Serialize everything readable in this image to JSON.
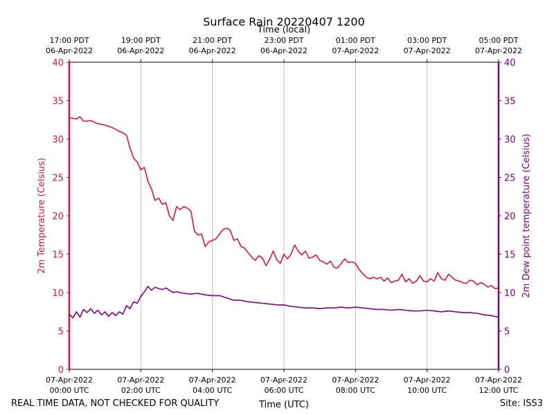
{
  "chart_data": {
    "type": "line",
    "title": "Surface Rain 20220407 1200",
    "top_xlabel": "Time (local)",
    "xlabel": "Time (UTC)",
    "ylabel_left": "2m Temperature (Celsius)",
    "ylabel_right": "2m Dew point temperature (Celsius)",
    "ylim": [
      0,
      40
    ],
    "yticks": [
      0,
      5,
      10,
      15,
      20,
      25,
      30,
      35,
      40
    ],
    "xlim_hours_utc": [
      0,
      12
    ],
    "grid": "vertical",
    "bottom_ticks": [
      {
        "hour": 0,
        "date": "07-Apr-2022",
        "time": "00:00 UTC"
      },
      {
        "hour": 2,
        "date": "07-Apr-2022",
        "time": "02:00 UTC"
      },
      {
        "hour": 4,
        "date": "07-Apr-2022",
        "time": "04:00 UTC"
      },
      {
        "hour": 6,
        "date": "07-Apr-2022",
        "time": "06:00 UTC"
      },
      {
        "hour": 8,
        "date": "07-Apr-2022",
        "time": "08:00 UTC"
      },
      {
        "hour": 10,
        "date": "07-Apr-2022",
        "time": "10:00 UTC"
      },
      {
        "hour": 12,
        "date": "07-Apr-2022",
        "time": "12:00 UTC"
      }
    ],
    "top_ticks": [
      {
        "hour": 0,
        "time": "17:00 PDT",
        "date": "06-Apr-2022"
      },
      {
        "hour": 2,
        "time": "19:00 PDT",
        "date": "06-Apr-2022"
      },
      {
        "hour": 4,
        "time": "21:00 PDT",
        "date": "06-Apr-2022"
      },
      {
        "hour": 6,
        "time": "23:00 PDT",
        "date": "06-Apr-2022"
      },
      {
        "hour": 8,
        "time": "01:00 PDT",
        "date": "07-Apr-2022"
      },
      {
        "hour": 10,
        "time": "03:00 PDT",
        "date": "07-Apr-2022"
      },
      {
        "hour": 12,
        "time": "05:00 PDT",
        "date": "07-Apr-2022"
      }
    ],
    "series": [
      {
        "name": "2m Temperature",
        "color": "#dc143c",
        "x": [
          0,
          0.2,
          0.3,
          0.4,
          0.6,
          0.8,
          1.0,
          1.2,
          1.4,
          1.5,
          1.6,
          1.7,
          1.8,
          1.9,
          2.0,
          2.1,
          2.2,
          2.3,
          2.4,
          2.5,
          2.6,
          2.7,
          2.8,
          2.9,
          3.0,
          3.1,
          3.2,
          3.3,
          3.4,
          3.5,
          3.6,
          3.7,
          3.8,
          3.9,
          4.0,
          4.1,
          4.2,
          4.3,
          4.4,
          4.5,
          4.6,
          4.7,
          4.8,
          4.9,
          5.0,
          5.1,
          5.2,
          5.3,
          5.4,
          5.5,
          5.6,
          5.7,
          5.8,
          5.9,
          6.0,
          6.1,
          6.2,
          6.3,
          6.4,
          6.5,
          6.6,
          6.7,
          6.8,
          6.9,
          7.0,
          7.1,
          7.2,
          7.3,
          7.4,
          7.5,
          7.6,
          7.7,
          7.8,
          7.9,
          8.0,
          8.1,
          8.2,
          8.3,
          8.4,
          8.5,
          8.6,
          8.7,
          8.8,
          8.9,
          9.0,
          9.1,
          9.2,
          9.3,
          9.4,
          9.5,
          9.6,
          9.7,
          9.8,
          9.9,
          10.0,
          10.1,
          10.2,
          10.3,
          10.4,
          10.5,
          10.6,
          10.7,
          10.8,
          10.9,
          11.0,
          11.1,
          11.2,
          11.3,
          11.4,
          11.5,
          11.6,
          11.7,
          11.8,
          11.9,
          12.0
        ],
        "values": [
          32.8,
          32.6,
          32.9,
          32.3,
          32.4,
          32.0,
          31.8,
          31.5,
          31.0,
          30.8,
          30.5,
          28.8,
          27.5,
          27.0,
          26.0,
          26.3,
          24.5,
          23.5,
          22.0,
          22.3,
          21.5,
          21.7,
          20.0,
          19.4,
          21.2,
          20.8,
          21.2,
          21.0,
          20.6,
          18.0,
          17.5,
          17.6,
          16.0,
          16.6,
          16.8,
          17.0,
          17.6,
          18.2,
          18.4,
          18.1,
          16.8,
          17.0,
          16.0,
          15.8,
          15.2,
          14.6,
          14.2,
          14.8,
          14.5,
          13.5,
          14.3,
          15.4,
          14.3,
          13.8,
          15.0,
          14.4,
          15.0,
          16.2,
          15.4,
          14.9,
          15.4,
          14.5,
          14.6,
          14.9,
          14.2,
          14.0,
          13.7,
          14.1,
          13.3,
          13.2,
          13.8,
          14.4,
          13.9,
          14.0,
          13.8,
          13.0,
          12.5,
          12.0,
          11.8,
          12.0,
          11.8,
          12.0,
          11.5,
          11.9,
          11.3,
          11.5,
          11.6,
          12.4,
          11.4,
          11.8,
          11.2,
          11.5,
          12.2,
          11.5,
          11.4,
          11.8,
          11.5,
          12.6,
          11.8,
          11.6,
          12.4,
          12.0,
          11.6,
          11.5,
          11.3,
          11.2,
          11.6,
          11.5,
          11.0,
          11.3,
          11.1,
          10.7,
          10.9,
          10.5,
          10.6
        ]
      },
      {
        "name": "2m Dew point temperature",
        "color": "#800080",
        "x": [
          0,
          0.1,
          0.2,
          0.3,
          0.4,
          0.5,
          0.6,
          0.7,
          0.8,
          0.9,
          1.0,
          1.1,
          1.2,
          1.3,
          1.4,
          1.5,
          1.6,
          1.7,
          1.8,
          1.9,
          2.0,
          2.1,
          2.2,
          2.3,
          2.4,
          2.5,
          2.6,
          2.7,
          2.8,
          2.9,
          3.0,
          3.2,
          3.4,
          3.6,
          3.8,
          4.0,
          4.2,
          4.4,
          4.6,
          4.8,
          5.0,
          5.2,
          5.4,
          5.6,
          5.8,
          6.0,
          6.2,
          6.4,
          6.6,
          6.8,
          7.0,
          7.2,
          7.4,
          7.6,
          7.8,
          8.0,
          8.2,
          8.4,
          8.6,
          8.8,
          9.0,
          9.2,
          9.4,
          9.6,
          9.8,
          10.0,
          10.2,
          10.4,
          10.6,
          10.8,
          11.0,
          11.2,
          11.4,
          11.6,
          11.8,
          12.0
        ],
        "values": [
          7.2,
          6.7,
          7.5,
          6.8,
          7.8,
          7.4,
          7.9,
          7.3,
          7.7,
          7.1,
          7.5,
          6.9,
          7.4,
          7.0,
          7.5,
          7.2,
          8.3,
          7.9,
          8.8,
          8.6,
          9.5,
          10.1,
          10.8,
          10.3,
          10.7,
          10.5,
          10.4,
          10.6,
          10.3,
          10.0,
          10.1,
          9.9,
          9.8,
          9.9,
          9.7,
          9.6,
          9.6,
          9.3,
          9.0,
          9.0,
          8.8,
          8.7,
          8.6,
          8.5,
          8.4,
          8.4,
          8.2,
          8.1,
          8.0,
          8.0,
          7.9,
          8.0,
          8.0,
          8.1,
          8.0,
          8.1,
          8.0,
          7.9,
          7.8,
          7.8,
          7.7,
          7.8,
          7.7,
          7.6,
          7.6,
          7.7,
          7.6,
          7.5,
          7.6,
          7.5,
          7.4,
          7.4,
          7.3,
          7.1,
          7.0,
          6.8
        ]
      }
    ]
  },
  "footer": {
    "disclaimer": "REAL TIME DATA, NOT CHECKED FOR QUALITY",
    "site": "Site: ISS3"
  }
}
